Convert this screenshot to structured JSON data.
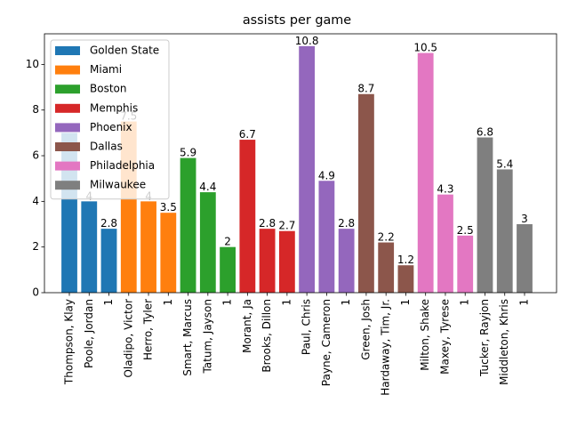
{
  "chart_data": {
    "type": "bar",
    "title": "assists per game",
    "categories": [
      "Thompson, Klay",
      "Poole, Jordan",
      "1",
      "Oladipo, Victor",
      "Herro, Tyler",
      "1",
      "Smart, Marcus",
      "Tatum, Jayson",
      "1",
      "Morant, Ja",
      "Brooks, Dillon",
      "1",
      "Paul, Chris",
      "Payne, Cameron",
      "1",
      "Green, Josh",
      "Hardaway, Tim, Jr.",
      "1",
      "Milton, Shake",
      "Maxey, Tyrese",
      "1",
      "Tucker, Rayjon",
      "Middleton, Khris",
      "1"
    ],
    "series": [
      {
        "name": "Golden State",
        "color": "#1f77b4",
        "values": [
          7,
          4,
          2.8,
          null,
          null,
          null,
          null,
          null,
          null,
          null,
          null,
          null,
          null,
          null,
          null,
          null,
          null,
          null,
          null,
          null,
          null,
          null,
          null,
          null
        ]
      },
      {
        "name": "Miami",
        "color": "#ff7f0e",
        "values": [
          null,
          null,
          null,
          7.5,
          4,
          3.5,
          null,
          null,
          null,
          null,
          null,
          null,
          null,
          null,
          null,
          null,
          null,
          null,
          null,
          null,
          null,
          null,
          null,
          null
        ]
      },
      {
        "name": "Boston",
        "color": "#2ca02c",
        "values": [
          null,
          null,
          null,
          null,
          null,
          null,
          5.9,
          4.4,
          2,
          null,
          null,
          null,
          null,
          null,
          null,
          null,
          null,
          null,
          null,
          null,
          null,
          null,
          null,
          null
        ]
      },
      {
        "name": "Memphis",
        "color": "#d62728",
        "values": [
          null,
          null,
          null,
          null,
          null,
          null,
          null,
          null,
          null,
          6.7,
          2.8,
          2.7,
          null,
          null,
          null,
          null,
          null,
          null,
          null,
          null,
          null,
          null,
          null,
          null
        ]
      },
      {
        "name": "Phoenix",
        "color": "#9467bd",
        "values": [
          null,
          null,
          null,
          null,
          null,
          null,
          null,
          null,
          null,
          null,
          null,
          null,
          10.8,
          4.9,
          2.8,
          null,
          null,
          null,
          null,
          null,
          null,
          null,
          null,
          null
        ]
      },
      {
        "name": "Dallas",
        "color": "#8c564b",
        "values": [
          null,
          null,
          null,
          null,
          null,
          null,
          null,
          null,
          null,
          null,
          null,
          null,
          null,
          null,
          null,
          8.7,
          2.2,
          1.2,
          null,
          null,
          null,
          null,
          null,
          null
        ]
      },
      {
        "name": "Philadelphia",
        "color": "#e377c2",
        "values": [
          null,
          null,
          null,
          null,
          null,
          null,
          null,
          null,
          null,
          null,
          null,
          null,
          null,
          null,
          null,
          null,
          null,
          null,
          10.5,
          4.3,
          2.5,
          null,
          null,
          null
        ]
      },
      {
        "name": "Milwaukee",
        "color": "#7f7f7f",
        "values": [
          null,
          null,
          null,
          null,
          null,
          null,
          null,
          null,
          null,
          null,
          null,
          null,
          null,
          null,
          null,
          null,
          null,
          null,
          null,
          null,
          null,
          6.8,
          5.4,
          3
        ]
      }
    ],
    "ylim": [
      0,
      11.34
    ],
    "yticks": [
      0,
      2,
      4,
      6,
      8,
      10
    ],
    "legend": "upper left"
  }
}
